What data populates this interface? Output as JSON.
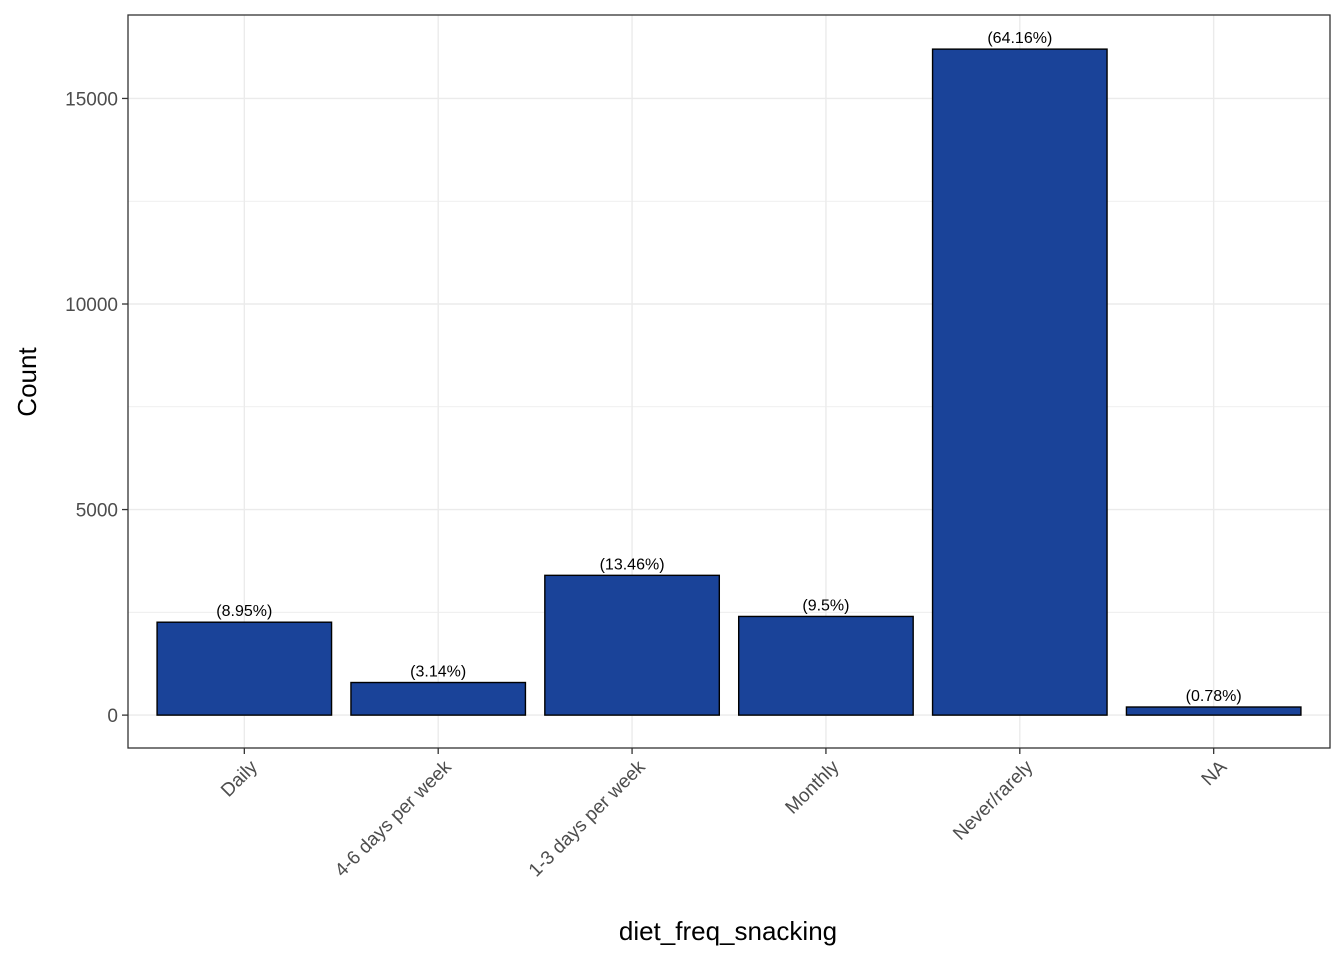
{
  "chart_data": {
    "type": "bar",
    "categories": [
      "Daily",
      "4-6 days per week",
      "1-3 days per week",
      "Monthly",
      "Never/rarely",
      "NA"
    ],
    "values": [
      2260,
      793,
      3400,
      2400,
      16200,
      197
    ],
    "labels": [
      "(8.95%)",
      "(3.14%)",
      "(13.46%)",
      "(9.5%)",
      "(64.16%)",
      "(0.78%)"
    ],
    "title": "",
    "xlabel": "diet_freq_snacking",
    "ylabel": "Count",
    "ylim": [
      -800,
      17030
    ],
    "yticks": [
      0,
      5000,
      10000,
      15000
    ],
    "grid": true,
    "bar_color": "#1a4399",
    "bar_edge_color": "#000000"
  }
}
